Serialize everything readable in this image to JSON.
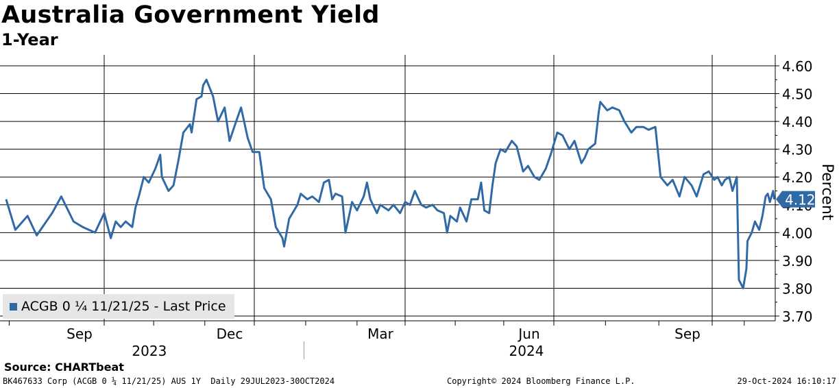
{
  "header": {
    "title": "Australia Government Yield",
    "subtitle": "1-Year"
  },
  "legend": {
    "label": "ACGB 0 ¼ 11/21/25 - Last Price"
  },
  "source": "Source: CHARTbeat",
  "footer": {
    "left": "BK467633 Corp (ACGB 0 ¼ 11/21/25) AUS 1Y  Daily 29JUL2023-30OCT2024",
    "mid": "Copyright© 2024 Bloomberg Finance L.P.",
    "right": "29-Oct-2024 16:10:17"
  },
  "colors": {
    "series": "#2f6aa6",
    "last_price_bg": "#2f6aa6",
    "legend_bg": "#e6e6e6"
  },
  "chart_data": {
    "type": "line",
    "title": "Australia Government Yield",
    "subtitle": "1-Year",
    "ylabel": "Percent",
    "ylim": [
      3.7,
      4.6
    ],
    "yticks": [
      "4.60",
      "4.50",
      "4.40",
      "4.30",
      "4.20",
      "4.10",
      "4.00",
      "3.90",
      "3.80",
      "3.70"
    ],
    "xlim": [
      "2023-07-29",
      "2024-10-30"
    ],
    "month_ticks": [
      {
        "label": "Sep",
        "date": "2023-09-01"
      },
      {
        "label": "Dec",
        "date": "2023-12-01"
      },
      {
        "label": "Mar",
        "date": "2024-03-01"
      },
      {
        "label": "Jun",
        "date": "2024-06-01"
      },
      {
        "label": "Sep",
        "date": "2024-09-01"
      }
    ],
    "year_labels": [
      {
        "label": "2023",
        "date": "2023-10-15"
      },
      {
        "label": "2024",
        "date": "2024-06-01"
      }
    ],
    "grid": true,
    "legend_position": "bottom-left",
    "last_price": "4.12",
    "series": [
      {
        "name": "ACGB 0 ¼ 11/21/25 - Last Price",
        "points": [
          [
            "2023-07-31",
            4.12
          ],
          [
            "2023-08-03",
            4.01
          ],
          [
            "2023-08-07",
            4.06
          ],
          [
            "2023-08-10",
            3.99
          ],
          [
            "2023-08-15",
            4.07
          ],
          [
            "2023-08-18",
            4.13
          ],
          [
            "2023-08-22",
            4.04
          ],
          [
            "2023-08-25",
            4.02
          ],
          [
            "2023-08-29",
            4.0
          ],
          [
            "2023-09-01",
            4.07
          ],
          [
            "2023-09-05",
            3.98
          ],
          [
            "2023-09-08",
            4.04
          ],
          [
            "2023-09-11",
            4.02
          ],
          [
            "2023-09-14",
            4.04
          ],
          [
            "2023-09-18",
            4.02
          ],
          [
            "2023-09-20",
            4.09
          ],
          [
            "2023-09-22",
            4.13
          ],
          [
            "2023-09-25",
            4.2
          ],
          [
            "2023-09-28",
            4.18
          ],
          [
            "2023-10-02",
            4.23
          ],
          [
            "2023-10-05",
            4.28
          ],
          [
            "2023-10-06",
            4.2
          ],
          [
            "2023-10-10",
            4.15
          ],
          [
            "2023-10-13",
            4.17
          ],
          [
            "2023-10-16",
            4.26
          ],
          [
            "2023-10-19",
            4.36
          ],
          [
            "2023-10-23",
            4.39
          ],
          [
            "2023-10-24",
            4.36
          ],
          [
            "2023-10-27",
            4.48
          ],
          [
            "2023-10-30",
            4.49
          ],
          [
            "2023-10-31",
            4.53
          ],
          [
            "2023-11-02",
            4.55
          ],
          [
            "2023-11-06",
            4.49
          ],
          [
            "2023-11-09",
            4.4
          ],
          [
            "2023-11-13",
            4.45
          ],
          [
            "2023-11-16",
            4.33
          ],
          [
            "2023-11-20",
            4.4
          ],
          [
            "2023-11-23",
            4.45
          ],
          [
            "2023-11-27",
            4.34
          ],
          [
            "2023-11-30",
            4.29
          ],
          [
            "2023-12-04",
            4.29
          ],
          [
            "2023-12-07",
            4.16
          ],
          [
            "2023-12-11",
            4.12
          ],
          [
            "2023-12-14",
            4.02
          ],
          [
            "2023-12-18",
            3.98
          ],
          [
            "2023-12-19",
            3.95
          ],
          [
            "2023-12-22",
            4.05
          ],
          [
            "2023-12-27",
            4.1
          ],
          [
            "2023-12-29",
            4.14
          ],
          [
            "2024-01-02",
            4.12
          ],
          [
            "2024-01-05",
            4.13
          ],
          [
            "2024-01-09",
            4.11
          ],
          [
            "2024-01-12",
            4.18
          ],
          [
            "2024-01-15",
            4.19
          ],
          [
            "2024-01-17",
            4.12
          ],
          [
            "2024-01-19",
            4.14
          ],
          [
            "2024-01-23",
            4.13
          ],
          [
            "2024-01-25",
            4.0
          ],
          [
            "2024-01-29",
            4.11
          ],
          [
            "2024-02-01",
            4.08
          ],
          [
            "2024-02-05",
            4.13
          ],
          [
            "2024-02-07",
            4.18
          ],
          [
            "2024-02-09",
            4.12
          ],
          [
            "2024-02-13",
            4.07
          ],
          [
            "2024-02-15",
            4.1
          ],
          [
            "2024-02-20",
            4.08
          ],
          [
            "2024-02-23",
            4.1
          ],
          [
            "2024-02-27",
            4.07
          ],
          [
            "2024-03-01",
            4.11
          ],
          [
            "2024-03-04",
            4.1
          ],
          [
            "2024-03-07",
            4.15
          ],
          [
            "2024-03-11",
            4.1
          ],
          [
            "2024-03-14",
            4.09
          ],
          [
            "2024-03-18",
            4.1
          ],
          [
            "2024-03-21",
            4.08
          ],
          [
            "2024-03-25",
            4.07
          ],
          [
            "2024-03-27",
            4.0
          ],
          [
            "2024-03-29",
            4.06
          ],
          [
            "2024-04-02",
            4.04
          ],
          [
            "2024-04-04",
            4.09
          ],
          [
            "2024-04-08",
            4.04
          ],
          [
            "2024-04-11",
            4.12
          ],
          [
            "2024-04-15",
            4.12
          ],
          [
            "2024-04-17",
            4.18
          ],
          [
            "2024-04-19",
            4.08
          ],
          [
            "2024-04-22",
            4.07
          ],
          [
            "2024-04-24",
            4.17
          ],
          [
            "2024-04-26",
            4.25
          ],
          [
            "2024-04-29",
            4.3
          ],
          [
            "2024-05-02",
            4.29
          ],
          [
            "2024-05-06",
            4.33
          ],
          [
            "2024-05-09",
            4.31
          ],
          [
            "2024-05-13",
            4.22
          ],
          [
            "2024-05-16",
            4.24
          ],
          [
            "2024-05-20",
            4.2
          ],
          [
            "2024-05-23",
            4.19
          ],
          [
            "2024-05-27",
            4.23
          ],
          [
            "2024-05-30",
            4.28
          ],
          [
            "2024-06-03",
            4.36
          ],
          [
            "2024-06-06",
            4.35
          ],
          [
            "2024-06-10",
            4.3
          ],
          [
            "2024-06-13",
            4.33
          ],
          [
            "2024-06-17",
            4.25
          ],
          [
            "2024-06-19",
            4.27
          ],
          [
            "2024-06-21",
            4.3
          ],
          [
            "2024-06-25",
            4.32
          ],
          [
            "2024-06-27",
            4.43
          ],
          [
            "2024-06-28",
            4.47
          ],
          [
            "2024-07-02",
            4.44
          ],
          [
            "2024-07-05",
            4.45
          ],
          [
            "2024-07-09",
            4.44
          ],
          [
            "2024-07-12",
            4.4
          ],
          [
            "2024-07-16",
            4.36
          ],
          [
            "2024-07-19",
            4.38
          ],
          [
            "2024-07-23",
            4.38
          ],
          [
            "2024-07-26",
            4.37
          ],
          [
            "2024-07-30",
            4.38
          ],
          [
            "2024-08-02",
            4.2
          ],
          [
            "2024-08-06",
            4.17
          ],
          [
            "2024-08-09",
            4.19
          ],
          [
            "2024-08-13",
            4.13
          ],
          [
            "2024-08-16",
            4.2
          ],
          [
            "2024-08-20",
            4.17
          ],
          [
            "2024-08-23",
            4.13
          ],
          [
            "2024-08-27",
            4.21
          ],
          [
            "2024-08-30",
            4.22
          ],
          [
            "2024-09-03",
            4.19
          ],
          [
            "2024-09-06",
            4.2
          ],
          [
            "2024-09-10",
            4.17
          ],
          [
            "2024-09-13",
            4.19
          ],
          [
            "2024-09-17",
            4.2
          ],
          [
            "2024-09-20",
            4.15
          ],
          [
            "2024-09-24",
            4.2
          ],
          [
            "2024-09-26",
            3.83
          ],
          [
            "2024-09-30",
            3.8
          ],
          [
            "2024-10-03",
            3.87
          ],
          [
            "2024-10-04",
            3.97
          ],
          [
            "2024-10-08",
            4.0
          ],
          [
            "2024-10-11",
            4.04
          ],
          [
            "2024-10-15",
            4.01
          ],
          [
            "2024-10-18",
            4.06
          ],
          [
            "2024-10-21",
            4.13
          ],
          [
            "2024-10-23",
            4.14
          ],
          [
            "2024-10-25",
            4.11
          ],
          [
            "2024-10-28",
            4.15
          ],
          [
            "2024-10-29",
            4.12
          ]
        ]
      }
    ]
  }
}
